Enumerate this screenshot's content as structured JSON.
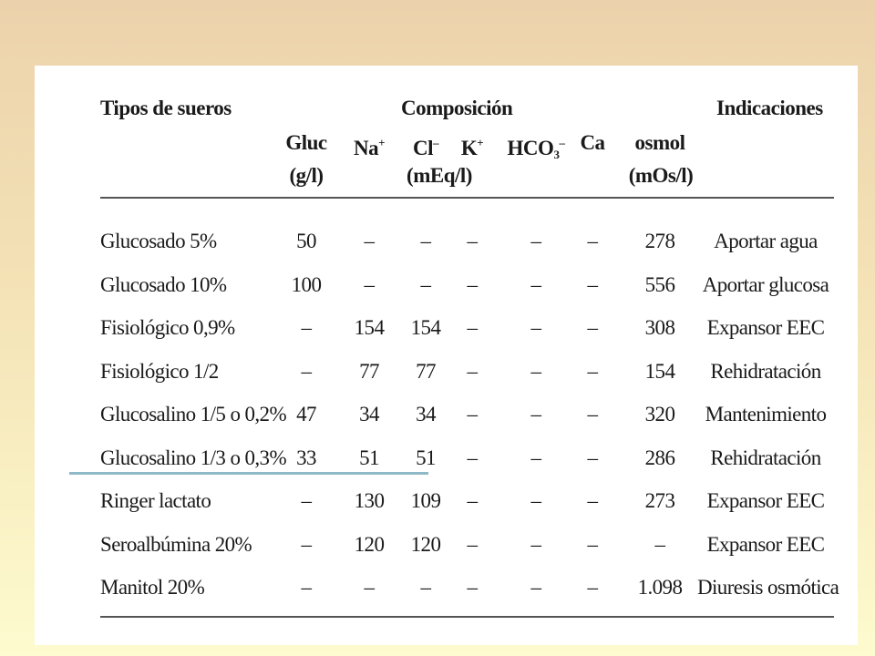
{
  "table": {
    "header": {
      "tipos": "Tipos de sueros",
      "composicion": "Composición",
      "indicaciones": "Indicaciones",
      "columns": {
        "gluc": "Gluc",
        "na_base": "Na",
        "na_sup": "+",
        "cl_base": "Cl",
        "cl_sup": "–",
        "k_base": "K",
        "k_sup": "+",
        "hco3_base": "HCO",
        "hco3_sub": "3",
        "hco3_sup": "–",
        "ca": "Ca",
        "osmol": "osmol"
      },
      "units": {
        "gluc": "(g/l)",
        "meq": "(mEq/l)",
        "osmol": "(mOs/l)"
      }
    },
    "rows": [
      {
        "name": "Glucosado 5%",
        "gluc": "50",
        "na": "–",
        "cl": "–",
        "k": "–",
        "hco3": "–",
        "ca": "–",
        "osmol": "278",
        "ind": "Aportar agua"
      },
      {
        "name": "Glucosado 10%",
        "gluc": "100",
        "na": "–",
        "cl": "–",
        "k": "–",
        "hco3": "–",
        "ca": "–",
        "osmol": "556",
        "ind": "Aportar glucosa"
      },
      {
        "name": "Fisiológico 0,9%",
        "gluc": "–",
        "na": "154",
        "cl": "154",
        "k": "–",
        "hco3": "–",
        "ca": "–",
        "osmol": "308",
        "ind": "Expansor EEC"
      },
      {
        "name": "Fisiológico 1/2",
        "gluc": "–",
        "na": "77",
        "cl": "77",
        "k": "–",
        "hco3": "–",
        "ca": "–",
        "osmol": "154",
        "ind": "Rehidratación"
      },
      {
        "name": "Glucosalino 1/5 o 0,2%",
        "gluc": "47",
        "na": "34",
        "cl": "34",
        "k": "–",
        "hco3": "–",
        "ca": "–",
        "osmol": "320",
        "ind": "Mantenimiento"
      },
      {
        "name": "Glucosalino 1/3 o 0,3%",
        "gluc": "33",
        "na": "51",
        "cl": "51",
        "k": "–",
        "hco3": "–",
        "ca": "–",
        "osmol": "286",
        "ind": "Rehidratación"
      },
      {
        "name": "Ringer lactato",
        "gluc": "–",
        "na": "130",
        "cl": "109",
        "k": "–",
        "hco3": "–",
        "ca": "–",
        "osmol": "273",
        "ind": "Expansor EEC"
      },
      {
        "name": "Seroalbúmina 20%",
        "gluc": "–",
        "na": "120",
        "cl": "120",
        "k": "–",
        "hco3": "–",
        "ca": "–",
        "osmol": "–",
        "ind": "Expansor EEC"
      },
      {
        "name": "Manitol 20%",
        "gluc": "–",
        "na": "–",
        "cl": "–",
        "k": "–",
        "hco3": "–",
        "ca": "–",
        "osmol": "1.098",
        "ind": "Diuresis osmótica"
      }
    ]
  },
  "colors": {
    "background_top": "#ecd2ac",
    "background_bottom": "#fdfbcf",
    "panel": "#ffffff",
    "accent_line": "#8fb8c8"
  }
}
